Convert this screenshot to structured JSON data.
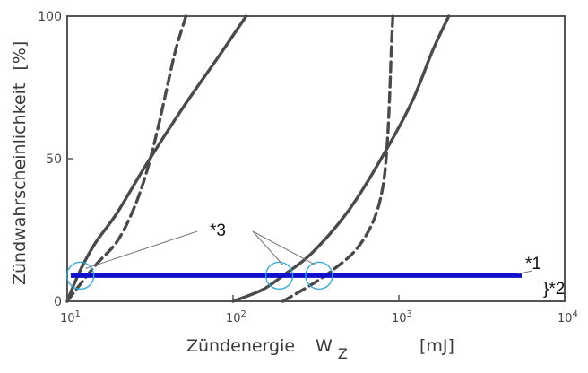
{
  "chart_data": {
    "type": "line",
    "xscale": "log",
    "xlim": [
      10,
      10000
    ],
    "ylim": [
      0,
      100
    ],
    "xlabel": "Zündenergie",
    "xlabel_symbol": "W",
    "xlabel_symbol_sub": "Z",
    "xlabel_unit": "[mJ]",
    "ylabel": "Zündwahrscheinlichkeit",
    "ylabel_unit": "[%]",
    "x_ticks": [
      {
        "value": 10,
        "base": "10",
        "exp": "1"
      },
      {
        "value": 100,
        "base": "10",
        "exp": "2"
      },
      {
        "value": 1000,
        "base": "10",
        "exp": "3"
      },
      {
        "value": 10000,
        "base": "10",
        "exp": "4"
      }
    ],
    "y_ticks": [
      {
        "value": 0,
        "label": "0"
      },
      {
        "value": 50,
        "label": "50"
      },
      {
        "value": 100,
        "label": "100"
      }
    ],
    "series": [
      {
        "style": "solid",
        "color": "#4a4a4a",
        "points": [
          [
            10,
            0
          ],
          [
            11,
            6
          ],
          [
            12.5,
            13
          ],
          [
            15,
            21
          ],
          [
            20,
            31
          ],
          [
            30,
            48
          ],
          [
            50,
            68
          ],
          [
            80,
            85
          ],
          [
            120,
            100
          ]
        ]
      },
      {
        "style": "dashed",
        "color": "#4a4a4a",
        "points": [
          [
            10,
            0
          ],
          [
            12,
            6
          ],
          [
            15,
            13
          ],
          [
            20,
            21
          ],
          [
            25,
            32
          ],
          [
            30,
            45
          ],
          [
            35,
            60
          ],
          [
            40,
            75
          ],
          [
            45,
            88
          ],
          [
            52,
            100
          ]
        ]
      },
      {
        "style": "solid",
        "color": "#4a4a4a",
        "points": [
          [
            100,
            0
          ],
          [
            150,
            4
          ],
          [
            200,
            9
          ],
          [
            300,
            17
          ],
          [
            500,
            32
          ],
          [
            800,
            51
          ],
          [
            1200,
            70
          ],
          [
            1600,
            88
          ],
          [
            2000,
            100
          ]
        ]
      },
      {
        "style": "dashed",
        "color": "#4a4a4a",
        "points": [
          [
            200,
            0
          ],
          [
            300,
            6
          ],
          [
            400,
            11
          ],
          [
            550,
            18
          ],
          [
            700,
            28
          ],
          [
            800,
            40
          ],
          [
            850,
            55
          ],
          [
            880,
            72
          ],
          [
            900,
            88
          ],
          [
            920,
            100
          ]
        ]
      }
    ],
    "threshold_line": {
      "y": 9,
      "x_start": 10.5,
      "x_end": 5500,
      "color": "#1010cc"
    },
    "circles": [
      {
        "x": 12,
        "y": 9
      },
      {
        "x": 190,
        "y": 9
      },
      {
        "x": 330,
        "y": 9
      }
    ],
    "annotations": {
      "note1": "*1",
      "note2": "}*2",
      "note3": "*3"
    },
    "grid": false,
    "legend": "none"
  }
}
